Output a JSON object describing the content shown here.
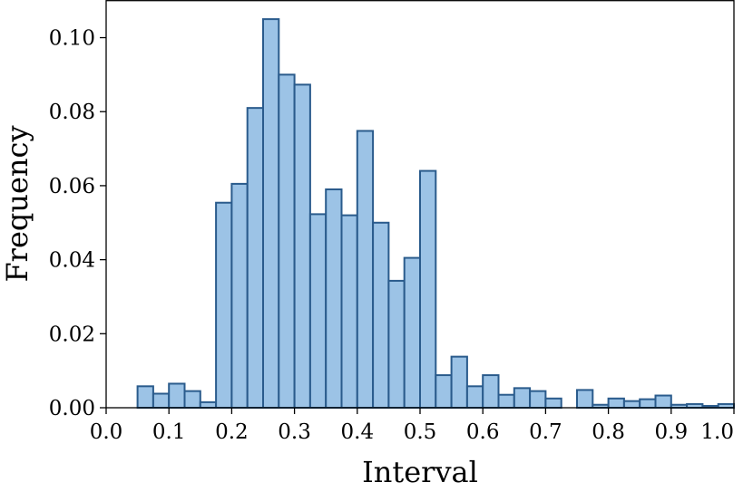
{
  "chart_data": {
    "type": "bar",
    "title": "",
    "xlabel": "Interval",
    "ylabel": "Frequency",
    "xlim": [
      0.0,
      1.0
    ],
    "ylim": [
      0.0,
      0.11
    ],
    "bin_width": 0.025,
    "bin_starts": [
      0.05,
      0.075,
      0.1,
      0.125,
      0.15,
      0.175,
      0.2,
      0.225,
      0.25,
      0.275,
      0.3,
      0.325,
      0.35,
      0.375,
      0.4,
      0.425,
      0.45,
      0.475,
      0.5,
      0.525,
      0.55,
      0.575,
      0.6,
      0.625,
      0.65,
      0.675,
      0.7,
      0.75,
      0.775,
      0.8,
      0.825,
      0.85,
      0.875,
      0.9,
      0.925,
      0.95,
      0.975
    ],
    "values": [
      0.0058,
      0.0038,
      0.0065,
      0.0045,
      0.0015,
      0.0554,
      0.0605,
      0.081,
      0.105,
      0.09,
      0.0873,
      0.0523,
      0.059,
      0.052,
      0.0748,
      0.05,
      0.0343,
      0.0405,
      0.064,
      0.0088,
      0.0138,
      0.0058,
      0.0088,
      0.0035,
      0.0053,
      0.0045,
      0.0025,
      0.0048,
      0.0008,
      0.0025,
      0.0018,
      0.0023,
      0.0033,
      0.0008,
      0.001,
      0.0005,
      0.001
    ],
    "x_ticks": [
      "0.0",
      "0.1",
      "0.2",
      "0.3",
      "0.4",
      "0.5",
      "0.6",
      "0.7",
      "0.8",
      "0.9",
      "1.0"
    ],
    "x_tick_values": [
      0.0,
      0.1,
      0.2,
      0.3,
      0.4,
      0.5,
      0.6,
      0.7,
      0.8,
      0.9,
      1.0
    ],
    "y_ticks": [
      "0.00",
      "0.02",
      "0.04",
      "0.06",
      "0.08",
      "0.10"
    ],
    "y_tick_values": [
      0.0,
      0.02,
      0.04,
      0.06,
      0.08,
      0.1
    ],
    "grid": false,
    "legend": "none",
    "colors": {
      "bar_fill": "#9cc3e6",
      "bar_edge": "#2a5b8c"
    }
  }
}
